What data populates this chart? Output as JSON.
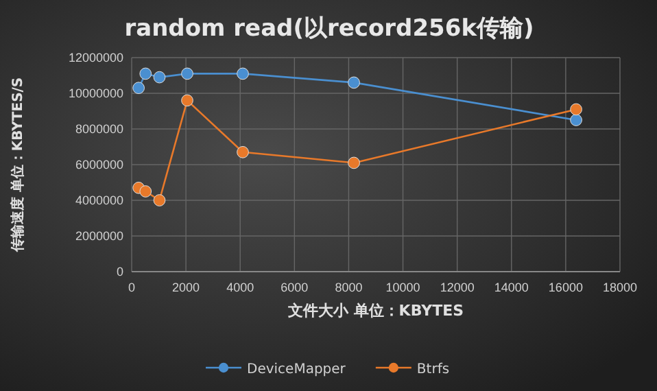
{
  "chart_data": {
    "type": "line",
    "title": "random read(以record256k传输)",
    "xlabel": "文件大小 单位：KBYTES",
    "ylabel": "传输速度 单位：KBYTES/S",
    "x": [
      256,
      512,
      1024,
      2048,
      4096,
      8192,
      16384
    ],
    "series": [
      {
        "name": "DeviceMapper",
        "color": "#4a8fd0",
        "values": [
          10300000,
          11100000,
          10900000,
          11100000,
          11100000,
          10600000,
          8500000
        ]
      },
      {
        "name": "Btrfs",
        "color": "#e8792a",
        "values": [
          4700000,
          4500000,
          4000000,
          9600000,
          6700000,
          6100000,
          9100000
        ]
      }
    ],
    "xlim": [
      0,
      18000
    ],
    "xticks": [
      0,
      2000,
      4000,
      6000,
      8000,
      10000,
      12000,
      14000,
      16000,
      18000
    ],
    "ylim": [
      0,
      12000000
    ],
    "yticks": [
      0,
      2000000,
      4000000,
      6000000,
      8000000,
      10000000,
      12000000
    ],
    "grid": true,
    "legend": "bottom",
    "marker": "circle",
    "line_style": "solid"
  }
}
